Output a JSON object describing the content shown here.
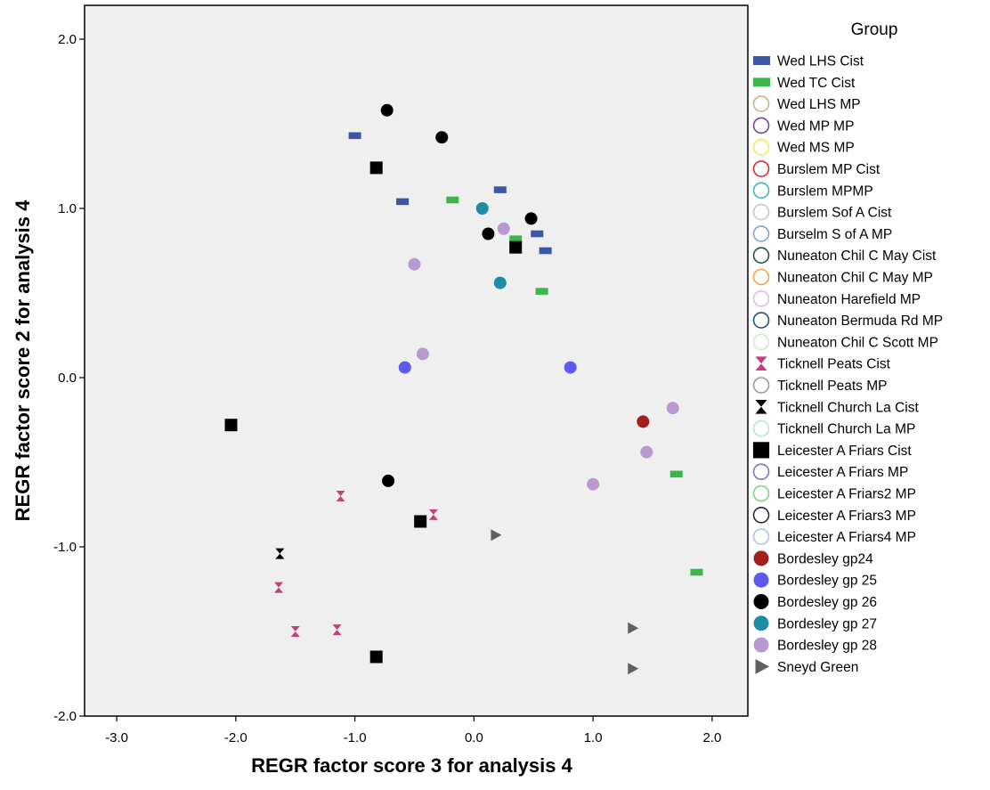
{
  "chart_data": {
    "type": "scatter",
    "xlabel": "REGR factor score   3 for analysis 4",
    "ylabel": "REGR factor score   2 for analysis 4",
    "xlim": [
      -3.27,
      2.3
    ],
    "ylim": [
      -2.0,
      2.2
    ],
    "xticks": [
      -3.0,
      -2.0,
      -1.0,
      0.0,
      1.0,
      2.0
    ],
    "xtick_labels": [
      "-3.0",
      "-2.0",
      "-1.0",
      "0.0",
      "1.0",
      "2.0"
    ],
    "yticks": [
      2.0,
      1.0,
      0.0,
      -1.0,
      -2.0
    ],
    "ytick_labels": [
      "2.0",
      "1.0",
      "0.0",
      "-1.0",
      "-2.0"
    ],
    "grid": false,
    "plot_background": "#efefef",
    "legend": {
      "title": "Group",
      "placement": "right"
    },
    "series": [
      {
        "name": "Wed LHS Cist",
        "marker": "dash",
        "color": "#3c55a5",
        "points": [
          [
            -1.0,
            1.43
          ],
          [
            -0.6,
            1.04
          ],
          [
            0.22,
            1.11
          ],
          [
            0.53,
            0.85
          ],
          [
            0.6,
            0.75
          ]
        ]
      },
      {
        "name": "Wed TC Cist",
        "marker": "dash",
        "color": "#3cb54a",
        "points": [
          [
            -0.18,
            1.05
          ],
          [
            0.35,
            0.82
          ],
          [
            0.57,
            0.51
          ],
          [
            1.7,
            -0.57
          ],
          [
            1.87,
            -1.15
          ]
        ]
      },
      {
        "name": "Wed LHS MP",
        "marker": "circle-open",
        "color": "#c9b38b",
        "points": []
      },
      {
        "name": "Wed MP MP",
        "marker": "circle-open",
        "color": "#7f3f98",
        "points": []
      },
      {
        "name": "Wed MS MP",
        "marker": "circle-open",
        "color": "#f2ea5c",
        "points": []
      },
      {
        "name": "Burslem MP Cist",
        "marker": "circle-open",
        "color": "#e8262b",
        "points": []
      },
      {
        "name": "Burslem MPMP",
        "marker": "circle-open",
        "color": "#45b7ba",
        "points": []
      },
      {
        "name": "Burslem Sof A Cist",
        "marker": "circle-open",
        "color": "#c8c8c8",
        "points": []
      },
      {
        "name": "Burselm S of A MP",
        "marker": "circle-open",
        "color": "#7ea3cf",
        "points": []
      },
      {
        "name": "Nuneaton Chil C May Cist",
        "marker": "circle-open",
        "color": "#1f5a3b",
        "points": []
      },
      {
        "name": "Nuneaton Chil C May MP",
        "marker": "circle-open",
        "color": "#f5a045",
        "points": []
      },
      {
        "name": "Nuneaton Harefield MP",
        "marker": "circle-open",
        "color": "#e3b7e3",
        "points": []
      },
      {
        "name": "Nuneaton Bermuda Rd MP",
        "marker": "circle-open",
        "color": "#24546b",
        "points": []
      },
      {
        "name": "Nuneaton Chil C Scott MP",
        "marker": "circle-open",
        "color": "#c9f0c9",
        "points": []
      },
      {
        "name": "Ticknell Peats Cist",
        "marker": "hourglass",
        "color": "#c2407c",
        "points": [
          [
            -1.12,
            -0.7
          ],
          [
            -0.34,
            -0.81
          ],
          [
            -1.64,
            -1.24
          ],
          [
            -1.5,
            -1.5
          ],
          [
            -1.15,
            -1.49
          ]
        ]
      },
      {
        "name": "Ticknell Peats MP",
        "marker": "circle-open",
        "color": "#9a9a9a",
        "points": []
      },
      {
        "name": "Ticknell Church La Cist",
        "marker": "hourglass",
        "color": "#000000",
        "points": [
          [
            -1.63,
            -1.04
          ]
        ]
      },
      {
        "name": "Ticknell Church La MP",
        "marker": "circle-open",
        "color": "#b6e3e3",
        "points": []
      },
      {
        "name": "Leicester A Friars Cist",
        "marker": "square",
        "color": "#000000",
        "points": [
          [
            -0.82,
            1.24
          ],
          [
            0.35,
            0.77
          ],
          [
            -2.04,
            -0.28
          ],
          [
            -0.45,
            -0.85
          ],
          [
            -0.82,
            -1.65
          ]
        ]
      },
      {
        "name": "Leicester A Friars MP",
        "marker": "circle-open",
        "color": "#7a7ab8",
        "points": []
      },
      {
        "name": "Leicester A Friars2 MP",
        "marker": "circle-open",
        "color": "#7fd47f",
        "points": []
      },
      {
        "name": "Leicester A Friars3 MP",
        "marker": "circle-open",
        "color": "#2b2b2b",
        "points": []
      },
      {
        "name": "Leicester A Friars4 MP",
        "marker": "circle-open",
        "color": "#a9c8ea",
        "points": []
      },
      {
        "name": "Bordesley gp24",
        "marker": "circle",
        "color": "#a51e1e",
        "points": [
          [
            1.42,
            -0.26
          ]
        ]
      },
      {
        "name": "Bordesley gp 25",
        "marker": "circle",
        "color": "#5b5bf0",
        "points": [
          [
            -0.58,
            0.06
          ],
          [
            0.81,
            0.06
          ]
        ]
      },
      {
        "name": "Bordesley gp 26",
        "marker": "circle",
        "color": "#000000",
        "points": [
          [
            -0.73,
            1.58
          ],
          [
            -0.27,
            1.42
          ],
          [
            0.48,
            0.94
          ],
          [
            0.12,
            0.85
          ],
          [
            -0.72,
            -0.61
          ]
        ]
      },
      {
        "name": "Bordesley gp 27",
        "marker": "circle",
        "color": "#1d8ca6",
        "points": [
          [
            0.07,
            1.0
          ],
          [
            0.22,
            0.56
          ]
        ]
      },
      {
        "name": "Bordesley gp 28",
        "marker": "circle",
        "color": "#b89ad0",
        "points": [
          [
            0.25,
            0.88
          ],
          [
            -0.5,
            0.67
          ],
          [
            -0.43,
            0.14
          ],
          [
            1.67,
            -0.18
          ],
          [
            1.45,
            -0.44
          ],
          [
            1.0,
            -0.63
          ]
        ]
      },
      {
        "name": "Sneyd Green",
        "marker": "triangle-right",
        "color": "#5f5f5f",
        "points": [
          [
            0.18,
            -0.93
          ],
          [
            1.33,
            -1.48
          ],
          [
            1.33,
            -1.72
          ]
        ]
      }
    ]
  }
}
